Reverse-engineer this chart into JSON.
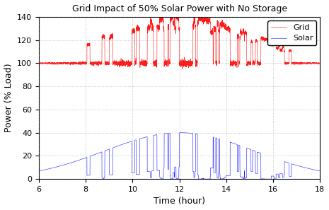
{
  "title": "Grid Impact of 50% Solar Power with No Storage",
  "xlabel": "Time (hour)",
  "ylabel": "Power (% Load)",
  "xlim": [
    6,
    18
  ],
  "ylim": [
    0,
    140
  ],
  "xticks": [
    6,
    8,
    10,
    12,
    14,
    16,
    18
  ],
  "yticks": [
    0,
    20,
    40,
    60,
    80,
    100,
    120,
    140
  ],
  "grid_color": "#888888",
  "background_color": "white",
  "legend_labels": [
    "Grid",
    "Solar"
  ],
  "solar_peak": 40,
  "grid_base": 100,
  "t_start": 6,
  "t_end": 18,
  "n_points": 5000,
  "seed": 7
}
